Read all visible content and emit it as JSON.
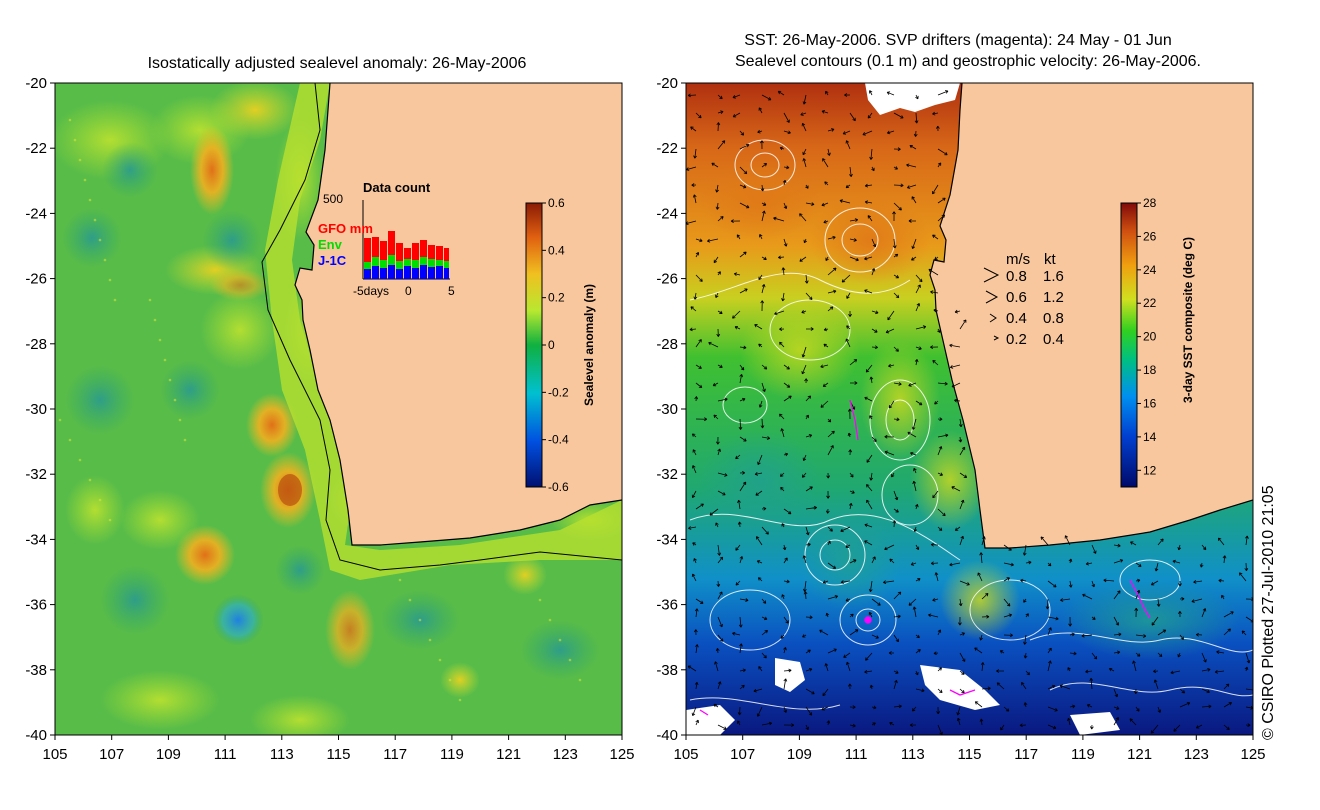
{
  "left_panel": {
    "title": "Isostatically adjusted sealevel anomaly: 26-May-2006",
    "colorbar": {
      "label": "Sealevel anomaly (m)",
      "ticks": [
        "0.6",
        "0.4",
        "0.2",
        "0",
        "-0.2",
        "-0.4",
        "-0.6"
      ],
      "range": [
        -0.6,
        0.6
      ]
    },
    "inset": {
      "title": "Data count",
      "y_max_label": "500",
      "x_labels": [
        "-5days",
        "0",
        "5"
      ],
      "legend": [
        {
          "label": "GFO mm",
          "color": "#ff0000"
        },
        {
          "label": "Env",
          "color": "#00dd00"
        },
        {
          "label": "J-1C",
          "color": "#0000ff"
        }
      ]
    }
  },
  "right_panel": {
    "title_line1": "SST: 26-May-2006. SVP drifters (magenta): 24 May - 01 Jun",
    "title_line2": "Sealevel contours (0.1 m) and geostrophic velocity: 26-May-2006.",
    "colorbar": {
      "label": "3-day SST composite (deg C)",
      "ticks": [
        "28",
        "26",
        "24",
        "22",
        "20",
        "18",
        "16",
        "14",
        "12"
      ],
      "range": [
        11,
        28
      ]
    },
    "velocity_legend": {
      "header_ms": "m/s",
      "header_kt": "kt",
      "rows": [
        {
          "ms": "0.8",
          "kt": "1.6"
        },
        {
          "ms": "0.6",
          "kt": "1.2"
        },
        {
          "ms": "0.4",
          "kt": "0.8"
        },
        {
          "ms": "0.2",
          "kt": "0.4"
        }
      ]
    }
  },
  "axes": {
    "lat_ticks": [
      "-20",
      "-22",
      "-24",
      "-26",
      "-28",
      "-30",
      "-32",
      "-34",
      "-36",
      "-38",
      "-40"
    ],
    "lon_ticks": [
      "105",
      "107",
      "109",
      "111",
      "113",
      "115",
      "117",
      "119",
      "121",
      "123",
      "125"
    ]
  },
  "credit": "© CSIRO Plotted 27-Jul-2010 21:05",
  "colors": {
    "land": "#f9c79d",
    "background": "#ffffff"
  }
}
